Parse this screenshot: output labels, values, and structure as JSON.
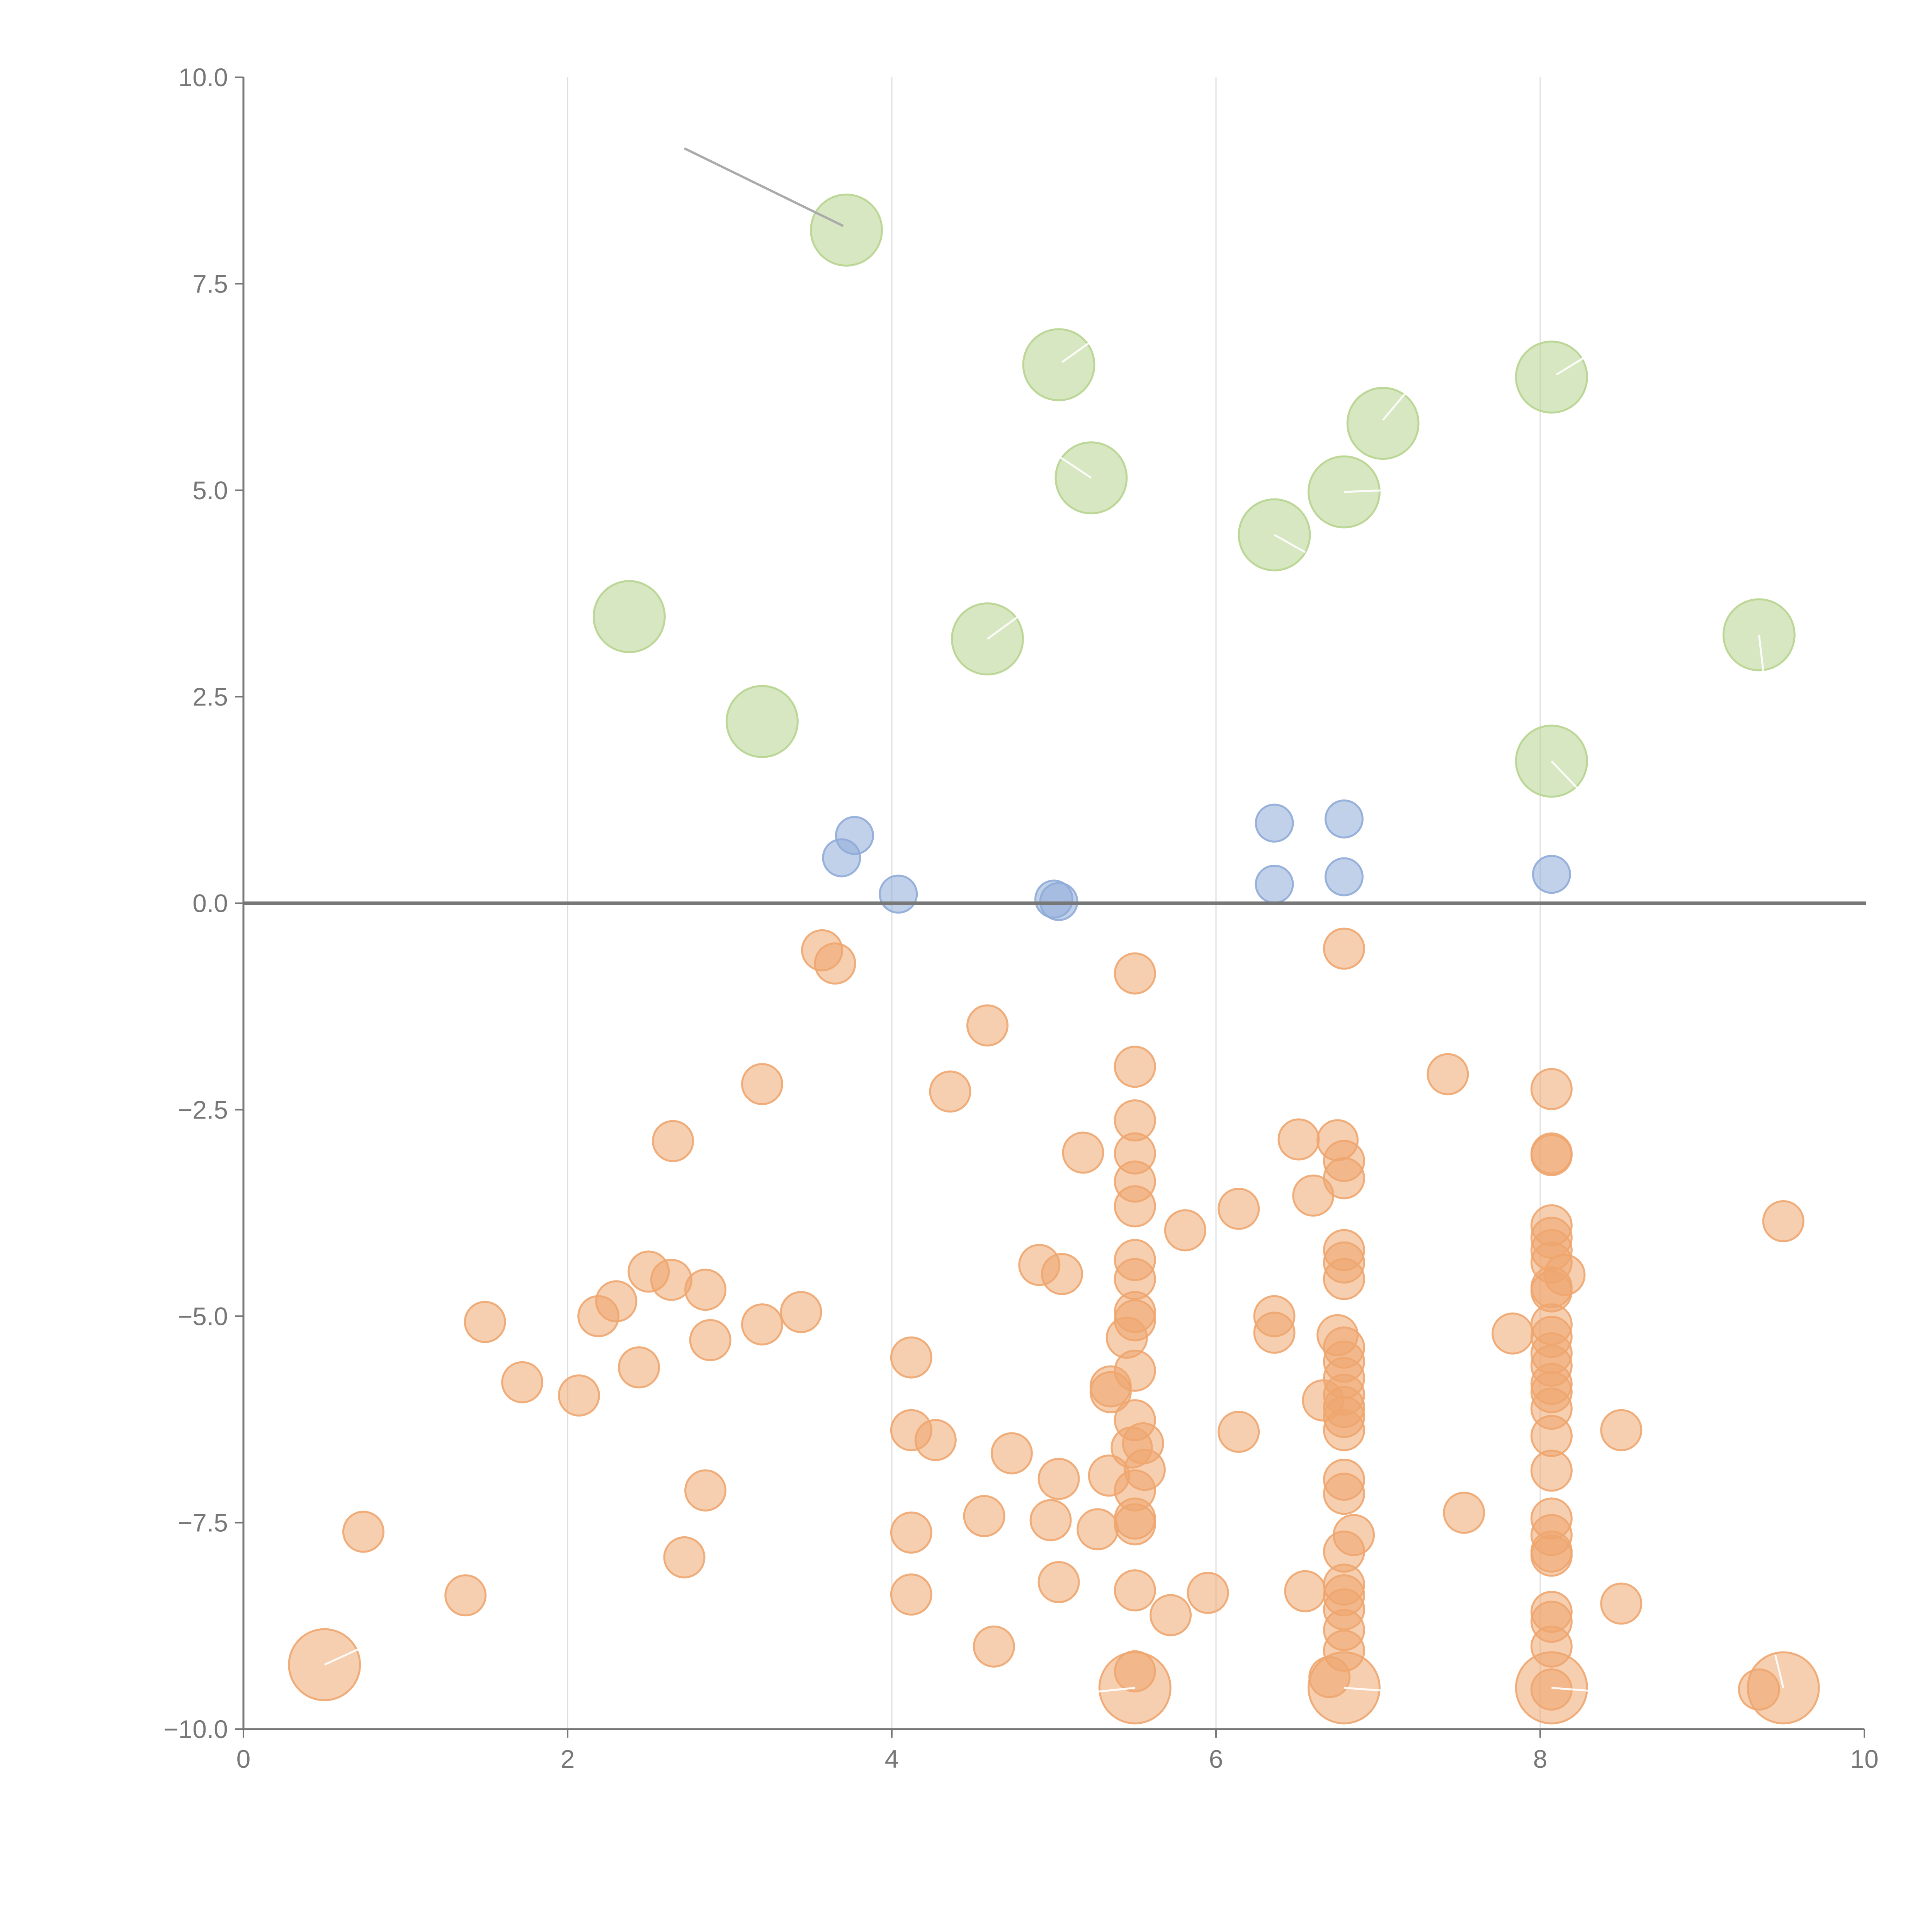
{
  "chart_data": {
    "type": "scatter",
    "title": "",
    "xlabel": "",
    "ylabel": "",
    "xlim": [
      0,
      10
    ],
    "ylim": [
      -10,
      10
    ],
    "x_ticks": [
      "0",
      "2",
      "4",
      "6",
      "8",
      "10"
    ],
    "x_tick_values": [
      0,
      2,
      4,
      6,
      8,
      10
    ],
    "y_ticks": [
      "10.0",
      "7.5",
      "5.0",
      "2.5",
      "0.0",
      "−2.5",
      "−5.0",
      "−7.5",
      "−10.0"
    ],
    "y_tick_values": [
      10,
      7.5,
      5,
      2.5,
      0,
      -2.5,
      -5,
      -7.5,
      -10
    ],
    "grid": "vertical",
    "legend": "none",
    "colors": {
      "green": "#b7d48f",
      "blue": "#8fabd8",
      "orange": "#eea66f"
    },
    "series": [
      {
        "color": "#b7d48f",
        "size": "large",
        "points": [
          [
            3.72,
            8.15
          ],
          [
            5.03,
            6.52
          ],
          [
            8.07,
            6.37
          ],
          [
            7.03,
            5.81
          ],
          [
            5.23,
            5.15
          ],
          [
            6.79,
            4.98
          ],
          [
            6.36,
            4.46
          ],
          [
            2.38,
            3.47
          ],
          [
            4.59,
            3.2
          ],
          [
            9.35,
            3.25
          ],
          [
            3.2,
            2.2
          ],
          [
            8.07,
            1.72
          ]
        ]
      },
      {
        "color": "#8fabd8",
        "size": "small",
        "points": [
          [
            3.77,
            0.82
          ],
          [
            3.69,
            0.55
          ],
          [
            4.04,
            0.11
          ],
          [
            5.0,
            0.05
          ],
          [
            5.03,
            0.02
          ],
          [
            6.36,
            0.97
          ],
          [
            6.36,
            0.23
          ],
          [
            6.79,
            1.02
          ],
          [
            6.79,
            0.32
          ],
          [
            8.07,
            0.35
          ]
        ]
      },
      {
        "color": "#eea66f",
        "size": "medium",
        "points": [
          [
            3.57,
            -0.57
          ],
          [
            3.65,
            -0.73
          ],
          [
            5.5,
            -0.85
          ],
          [
            6.79,
            -0.55
          ],
          [
            4.59,
            -1.48
          ],
          [
            5.5,
            -1.98
          ],
          [
            3.2,
            -2.19
          ],
          [
            4.36,
            -2.28
          ],
          [
            7.43,
            -2.07
          ],
          [
            8.07,
            -2.25
          ],
          [
            2.65,
            -2.88
          ],
          [
            5.18,
            -3.02
          ],
          [
            5.5,
            -2.63
          ],
          [
            5.5,
            -3.03
          ],
          [
            5.5,
            -3.37
          ],
          [
            5.5,
            -3.67
          ],
          [
            6.51,
            -2.86
          ],
          [
            6.6,
            -3.54
          ],
          [
            6.75,
            -2.87
          ],
          [
            6.79,
            -3.12
          ],
          [
            6.79,
            -3.33
          ],
          [
            8.07,
            -3.03
          ],
          [
            8.07,
            -3.05
          ],
          [
            6.14,
            -3.7
          ],
          [
            5.81,
            -3.96
          ],
          [
            9.5,
            -3.85
          ],
          [
            2.5,
            -4.46
          ],
          [
            2.64,
            -4.56
          ],
          [
            2.85,
            -4.68
          ],
          [
            2.3,
            -4.82
          ],
          [
            2.19,
            -5.0
          ],
          [
            1.49,
            -5.07
          ],
          [
            3.44,
            -4.95
          ],
          [
            3.2,
            -5.1
          ],
          [
            2.88,
            -5.29
          ],
          [
            4.91,
            -4.38
          ],
          [
            5.05,
            -4.49
          ],
          [
            5.5,
            -4.32
          ],
          [
            5.5,
            -4.55
          ],
          [
            5.5,
            -4.95
          ],
          [
            5.5,
            -5.05
          ],
          [
            5.45,
            -5.26
          ],
          [
            6.36,
            -5.0
          ],
          [
            6.36,
            -5.2
          ],
          [
            6.79,
            -4.2
          ],
          [
            6.79,
            -4.35
          ],
          [
            6.79,
            -4.55
          ],
          [
            8.07,
            -3.9
          ],
          [
            8.07,
            -4.05
          ],
          [
            8.07,
            -4.2
          ],
          [
            8.07,
            -4.35
          ],
          [
            8.15,
            -4.5
          ],
          [
            8.07,
            -4.65
          ],
          [
            8.07,
            -4.7
          ],
          [
            8.07,
            -5.1
          ],
          [
            8.07,
            -5.25
          ],
          [
            7.83,
            -5.21
          ],
          [
            8.07,
            -5.45
          ],
          [
            2.44,
            -5.62
          ],
          [
            1.72,
            -5.8
          ],
          [
            2.07,
            -5.96
          ],
          [
            4.12,
            -5.5
          ],
          [
            5.5,
            -5.66
          ],
          [
            5.35,
            -5.85
          ],
          [
            5.35,
            -5.92
          ],
          [
            6.75,
            -5.23
          ],
          [
            6.79,
            -5.38
          ],
          [
            6.79,
            -5.55
          ],
          [
            6.79,
            -5.75
          ],
          [
            6.79,
            -5.95
          ],
          [
            6.79,
            -6.1
          ],
          [
            6.66,
            -6.02
          ],
          [
            6.79,
            -6.22
          ],
          [
            8.07,
            -5.6
          ],
          [
            8.07,
            -5.82
          ],
          [
            8.07,
            -5.92
          ],
          [
            8.07,
            -6.12
          ],
          [
            8.07,
            -6.45
          ],
          [
            8.5,
            -6.38
          ],
          [
            4.12,
            -6.38
          ],
          [
            4.27,
            -6.5
          ],
          [
            5.5,
            -6.26
          ],
          [
            5.55,
            -6.54
          ],
          [
            5.48,
            -6.59
          ],
          [
            6.14,
            -6.4
          ],
          [
            6.79,
            -6.38
          ],
          [
            4.74,
            -6.66
          ],
          [
            5.56,
            -6.86
          ],
          [
            5.34,
            -6.93
          ],
          [
            5.03,
            -6.97
          ],
          [
            5.5,
            -7.11
          ],
          [
            6.79,
            -6.98
          ],
          [
            6.79,
            -7.15
          ],
          [
            8.07,
            -6.87
          ],
          [
            2.85,
            -7.11
          ],
          [
            0.74,
            -7.61
          ],
          [
            4.12,
            -7.62
          ],
          [
            4.57,
            -7.42
          ],
          [
            4.98,
            -7.47
          ],
          [
            5.27,
            -7.58
          ],
          [
            5.5,
            -7.45
          ],
          [
            5.5,
            -7.52
          ],
          [
            6.79,
            -7.85
          ],
          [
            6.85,
            -7.65
          ],
          [
            7.53,
            -7.38
          ],
          [
            8.07,
            -7.45
          ],
          [
            8.07,
            -7.65
          ],
          [
            8.07,
            -7.85
          ],
          [
            8.07,
            -7.9
          ],
          [
            2.72,
            -7.92
          ],
          [
            1.37,
            -8.38
          ],
          [
            4.12,
            -8.37
          ],
          [
            5.03,
            -8.22
          ],
          [
            5.5,
            -8.32
          ],
          [
            5.95,
            -8.35
          ],
          [
            6.55,
            -8.33
          ],
          [
            5.72,
            -8.62
          ],
          [
            6.79,
            -8.25
          ],
          [
            6.79,
            -8.38
          ],
          [
            6.79,
            -8.55
          ],
          [
            6.79,
            -8.8
          ],
          [
            6.79,
            -9.05
          ],
          [
            8.07,
            -8.58
          ],
          [
            8.07,
            -8.7
          ],
          [
            8.07,
            -9.0
          ],
          [
            8.5,
            -8.48
          ],
          [
            4.63,
            -9.0
          ],
          [
            5.5,
            -9.3
          ],
          [
            6.7,
            -9.37
          ],
          [
            8.07,
            -9.52
          ],
          [
            9.35,
            -9.52
          ]
        ]
      },
      {
        "color": "#eea66f",
        "size": "large",
        "points": [
          [
            0.5,
            -9.22
          ],
          [
            5.5,
            -9.5
          ],
          [
            6.79,
            -9.5
          ],
          [
            8.07,
            -9.5
          ],
          [
            9.5,
            -9.5
          ]
        ]
      }
    ]
  }
}
